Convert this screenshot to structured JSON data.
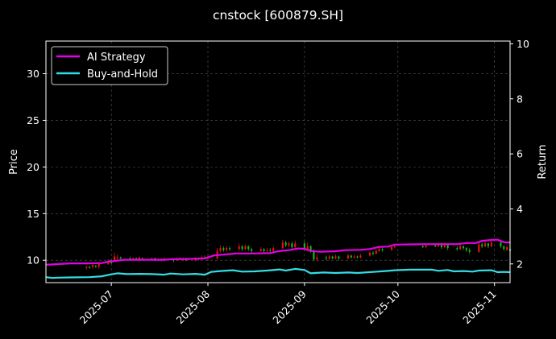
{
  "chart_data": {
    "type": "line",
    "title": "cnstock [600879.SH]",
    "xlabel": "",
    "ylabel_left": "Price",
    "ylabel_right": "Return",
    "x_range": [
      "2025-06-10",
      "2025-11-06"
    ],
    "ylim_left": [
      7.6,
      33.5
    ],
    "ylim_right": [
      1.32,
      10.1
    ],
    "left_ticks": [
      10,
      15,
      20,
      25,
      30
    ],
    "right_ticks": [
      2,
      4,
      6,
      8,
      10
    ],
    "x_ticks": [
      "2025-07",
      "2025-08",
      "2025-09",
      "2025-10",
      "2025-11"
    ],
    "x_tick_dates": [
      "2025-07-01",
      "2025-08-01",
      "2025-09-01",
      "2025-10-01",
      "2025-11-01"
    ],
    "grid": true,
    "legend_position": "top-left",
    "colors": {
      "background": "#000000",
      "ai_strategy": "#e600e6",
      "buy_hold": "#33dde6",
      "up_candle": "#ee1111",
      "down_candle": "#11bb11",
      "grid": "#555555"
    },
    "series": [
      {
        "name": "AI Strategy",
        "axis": "right",
        "points": [
          [
            "2025-06-10",
            1.97
          ],
          [
            "2025-06-13",
            1.99
          ],
          [
            "2025-06-18",
            2.02
          ],
          [
            "2025-06-24",
            2.02
          ],
          [
            "2025-06-28",
            2.03
          ],
          [
            "2025-06-30",
            2.08
          ],
          [
            "2025-07-03",
            2.12
          ],
          [
            "2025-07-05",
            2.15
          ],
          [
            "2025-07-12",
            2.15
          ],
          [
            "2025-07-18",
            2.15
          ],
          [
            "2025-07-20",
            2.17
          ],
          [
            "2025-07-25",
            2.18
          ],
          [
            "2025-07-31",
            2.2
          ],
          [
            "2025-08-03",
            2.31
          ],
          [
            "2025-08-08",
            2.36
          ],
          [
            "2025-08-10",
            2.38
          ],
          [
            "2025-08-15",
            2.38
          ],
          [
            "2025-08-21",
            2.39
          ],
          [
            "2025-08-23",
            2.45
          ],
          [
            "2025-08-25",
            2.48
          ],
          [
            "2025-08-27",
            2.5
          ],
          [
            "2025-08-30",
            2.56
          ],
          [
            "2025-09-01",
            2.55
          ],
          [
            "2025-09-03",
            2.47
          ],
          [
            "2025-09-06",
            2.44
          ],
          [
            "2025-09-11",
            2.46
          ],
          [
            "2025-09-14",
            2.5
          ],
          [
            "2025-09-19",
            2.51
          ],
          [
            "2025-09-22",
            2.54
          ],
          [
            "2025-09-25",
            2.62
          ],
          [
            "2025-09-28",
            2.63
          ],
          [
            "2025-09-30",
            2.7
          ],
          [
            "2025-10-05",
            2.71
          ],
          [
            "2025-10-10",
            2.72
          ],
          [
            "2025-10-17",
            2.72
          ],
          [
            "2025-10-20",
            2.72
          ],
          [
            "2025-10-23",
            2.76
          ],
          [
            "2025-10-26",
            2.76
          ],
          [
            "2025-10-28",
            2.84
          ],
          [
            "2025-10-31",
            2.87
          ],
          [
            "2025-11-02",
            2.88
          ],
          [
            "2025-11-04",
            2.79
          ],
          [
            "2025-11-06",
            2.78
          ]
        ]
      },
      {
        "name": "Buy-and-Hold",
        "axis": "right",
        "points": [
          [
            "2025-06-10",
            1.52
          ],
          [
            "2025-06-12",
            1.49
          ],
          [
            "2025-06-14",
            1.5
          ],
          [
            "2025-06-18",
            1.51
          ],
          [
            "2025-06-24",
            1.52
          ],
          [
            "2025-06-28",
            1.55
          ],
          [
            "2025-07-01",
            1.62
          ],
          [
            "2025-07-03",
            1.66
          ],
          [
            "2025-07-06",
            1.63
          ],
          [
            "2025-07-10",
            1.64
          ],
          [
            "2025-07-14",
            1.63
          ],
          [
            "2025-07-18",
            1.61
          ],
          [
            "2025-07-20",
            1.65
          ],
          [
            "2025-07-24",
            1.62
          ],
          [
            "2025-07-28",
            1.64
          ],
          [
            "2025-07-31",
            1.61
          ],
          [
            "2025-08-02",
            1.71
          ],
          [
            "2025-08-05",
            1.74
          ],
          [
            "2025-08-09",
            1.77
          ],
          [
            "2025-08-12",
            1.72
          ],
          [
            "2025-08-16",
            1.73
          ],
          [
            "2025-08-20",
            1.76
          ],
          [
            "2025-08-24",
            1.8
          ],
          [
            "2025-08-26",
            1.76
          ],
          [
            "2025-08-29",
            1.82
          ],
          [
            "2025-09-01",
            1.78
          ],
          [
            "2025-09-03",
            1.66
          ],
          [
            "2025-09-07",
            1.69
          ],
          [
            "2025-09-11",
            1.67
          ],
          [
            "2025-09-15",
            1.69
          ],
          [
            "2025-09-18",
            1.67
          ],
          [
            "2025-09-23",
            1.71
          ],
          [
            "2025-09-27",
            1.74
          ],
          [
            "2025-09-30",
            1.77
          ],
          [
            "2025-10-05",
            1.79
          ],
          [
            "2025-10-12",
            1.79
          ],
          [
            "2025-10-14",
            1.75
          ],
          [
            "2025-10-17",
            1.78
          ],
          [
            "2025-10-19",
            1.73
          ],
          [
            "2025-10-22",
            1.74
          ],
          [
            "2025-10-25",
            1.72
          ],
          [
            "2025-10-27",
            1.76
          ],
          [
            "2025-10-31",
            1.77
          ],
          [
            "2025-11-02",
            1.7
          ],
          [
            "2025-11-04",
            1.71
          ],
          [
            "2025-11-06",
            1.7
          ]
        ]
      }
    ],
    "candles": {
      "axis": "left",
      "columns": [
        "date",
        "open",
        "close",
        "low",
        "high"
      ],
      "data": [
        [
          "2025-06-23",
          9.2,
          9.3,
          9.0,
          9.4
        ],
        [
          "2025-06-24",
          9.3,
          9.2,
          9.1,
          9.4
        ],
        [
          "2025-06-25",
          9.3,
          9.5,
          9.1,
          9.6
        ],
        [
          "2025-06-26",
          9.4,
          9.3,
          9.2,
          9.5
        ],
        [
          "2025-06-27",
          9.3,
          9.6,
          9.1,
          9.8
        ],
        [
          "2025-06-30",
          9.6,
          9.9,
          9.5,
          10.1
        ],
        [
          "2025-07-01",
          9.9,
          9.7,
          9.6,
          10.1
        ],
        [
          "2025-07-02",
          9.9,
          10.4,
          9.8,
          10.8
        ],
        [
          "2025-07-03",
          10.2,
          10.3,
          10.0,
          10.6
        ],
        [
          "2025-07-04",
          10.3,
          10.2,
          10.1,
          10.4
        ],
        [
          "2025-07-07",
          10.2,
          10.1,
          10.0,
          10.4
        ],
        [
          "2025-07-08",
          10.1,
          10.2,
          10.0,
          10.3
        ],
        [
          "2025-07-09",
          10.2,
          10.1,
          10.0,
          10.3
        ],
        [
          "2025-07-10",
          10.0,
          10.3,
          9.9,
          10.4
        ],
        [
          "2025-07-11",
          10.2,
          10.1,
          10.0,
          10.3
        ],
        [
          "2025-07-14",
          10.1,
          10.2,
          10.0,
          10.3
        ],
        [
          "2025-07-15",
          10.2,
          10.0,
          9.9,
          10.3
        ],
        [
          "2025-07-16",
          10.0,
          10.1,
          9.9,
          10.2
        ],
        [
          "2025-07-17",
          10.1,
          10.0,
          9.9,
          10.2
        ],
        [
          "2025-07-18",
          10.0,
          10.2,
          9.9,
          10.3
        ],
        [
          "2025-07-21",
          10.1,
          10.0,
          9.8,
          10.2
        ],
        [
          "2025-07-22",
          10.0,
          10.2,
          9.9,
          10.3
        ],
        [
          "2025-07-23",
          10.2,
          10.1,
          10.0,
          10.3
        ],
        [
          "2025-07-24",
          10.0,
          10.2,
          9.9,
          10.3
        ],
        [
          "2025-07-25",
          10.1,
          10.0,
          9.9,
          10.2
        ],
        [
          "2025-07-28",
          10.0,
          10.2,
          9.9,
          10.3
        ],
        [
          "2025-07-29",
          10.2,
          10.1,
          10.0,
          10.3
        ],
        [
          "2025-07-30",
          10.1,
          10.3,
          10.0,
          10.5
        ],
        [
          "2025-07-31",
          10.3,
          10.2,
          10.1,
          10.5
        ],
        [
          "2025-08-01",
          10.2,
          10.4,
          10.0,
          10.6
        ],
        [
          "2025-08-04",
          10.2,
          11.0,
          10.1,
          11.3
        ],
        [
          "2025-08-05",
          11.0,
          11.3,
          10.8,
          11.6
        ],
        [
          "2025-08-06",
          11.3,
          11.1,
          10.9,
          11.5
        ],
        [
          "2025-08-07",
          11.1,
          11.3,
          10.9,
          11.5
        ],
        [
          "2025-08-08",
          11.3,
          11.2,
          11.0,
          11.5
        ],
        [
          "2025-08-11",
          11.2,
          11.5,
          11.0,
          11.8
        ],
        [
          "2025-08-12",
          11.5,
          11.2,
          11.0,
          11.6
        ],
        [
          "2025-08-13",
          11.2,
          11.5,
          11.1,
          11.7
        ],
        [
          "2025-08-14",
          11.5,
          11.2,
          11.0,
          11.6
        ],
        [
          "2025-08-15",
          11.2,
          11.0,
          10.8,
          11.3
        ],
        [
          "2025-08-18",
          11.0,
          11.2,
          10.9,
          11.4
        ],
        [
          "2025-08-19",
          11.2,
          11.0,
          10.8,
          11.3
        ],
        [
          "2025-08-20",
          11.0,
          11.1,
          10.9,
          11.3
        ],
        [
          "2025-08-21",
          11.1,
          11.0,
          10.9,
          11.3
        ],
        [
          "2025-08-22",
          11.0,
          11.3,
          10.9,
          11.5
        ],
        [
          "2025-08-25",
          11.3,
          11.9,
          11.2,
          12.2
        ],
        [
          "2025-08-26",
          11.9,
          11.6,
          11.4,
          12.1
        ],
        [
          "2025-08-27",
          11.6,
          11.8,
          11.4,
          12.0
        ],
        [
          "2025-08-28",
          11.8,
          11.4,
          11.2,
          12.0
        ],
        [
          "2025-08-29",
          11.4,
          11.8,
          11.2,
          12.1
        ],
        [
          "2025-09-01",
          11.8,
          11.2,
          11.0,
          12.1
        ],
        [
          "2025-09-02",
          11.2,
          11.5,
          11.0,
          11.9
        ],
        [
          "2025-09-03",
          11.5,
          11.0,
          10.8,
          11.6
        ],
        [
          "2025-09-04",
          11.0,
          10.1,
          9.9,
          11.2
        ],
        [
          "2025-09-05",
          10.1,
          10.3,
          9.9,
          10.6
        ],
        [
          "2025-09-08",
          10.3,
          10.2,
          10.0,
          10.5
        ],
        [
          "2025-09-09",
          10.2,
          10.4,
          10.0,
          10.6
        ],
        [
          "2025-09-10",
          10.4,
          10.2,
          10.1,
          10.5
        ],
        [
          "2025-09-11",
          10.2,
          10.4,
          10.1,
          10.6
        ],
        [
          "2025-09-12",
          10.4,
          10.2,
          10.0,
          10.5
        ],
        [
          "2025-09-15",
          10.2,
          10.5,
          10.1,
          10.7
        ],
        [
          "2025-09-16",
          10.5,
          10.3,
          10.2,
          10.6
        ],
        [
          "2025-09-17",
          10.3,
          10.4,
          10.2,
          10.6
        ],
        [
          "2025-09-18",
          10.4,
          10.3,
          10.2,
          10.5
        ],
        [
          "2025-09-19",
          10.3,
          10.5,
          10.2,
          10.7
        ],
        [
          "2025-09-22",
          10.5,
          10.8,
          10.4,
          11.0
        ],
        [
          "2025-09-23",
          10.8,
          10.7,
          10.5,
          11.0
        ],
        [
          "2025-09-24",
          10.7,
          11.0,
          10.6,
          11.2
        ],
        [
          "2025-09-25",
          11.0,
          11.2,
          10.9,
          11.4
        ],
        [
          "2025-09-26",
          11.2,
          11.1,
          10.9,
          11.4
        ],
        [
          "2025-09-29",
          11.1,
          11.4,
          11.0,
          11.6
        ],
        [
          "2025-09-30",
          11.4,
          11.5,
          11.3,
          11.7
        ],
        [
          "2025-10-09",
          11.5,
          11.4,
          11.3,
          11.7
        ],
        [
          "2025-10-10",
          11.4,
          11.6,
          11.3,
          11.8
        ],
        [
          "2025-10-13",
          11.6,
          11.5,
          11.4,
          11.8
        ],
        [
          "2025-10-14",
          11.5,
          11.7,
          11.4,
          11.9
        ],
        [
          "2025-10-15",
          11.7,
          11.4,
          11.2,
          11.9
        ],
        [
          "2025-10-16",
          11.4,
          11.7,
          11.3,
          11.9
        ],
        [
          "2025-10-17",
          11.7,
          11.3,
          11.1,
          11.8
        ],
        [
          "2025-10-20",
          11.3,
          11.2,
          11.0,
          11.5
        ],
        [
          "2025-10-21",
          11.2,
          11.5,
          11.1,
          11.7
        ],
        [
          "2025-10-22",
          11.5,
          11.3,
          11.1,
          11.6
        ],
        [
          "2025-10-23",
          11.3,
          11.1,
          10.9,
          11.4
        ],
        [
          "2025-10-24",
          11.1,
          10.9,
          10.7,
          11.3
        ],
        [
          "2025-10-27",
          10.9,
          11.7,
          10.8,
          12.1
        ],
        [
          "2025-10-28",
          11.7,
          11.5,
          11.3,
          11.9
        ],
        [
          "2025-10-29",
          11.5,
          11.8,
          11.4,
          12.0
        ],
        [
          "2025-10-30",
          11.8,
          11.5,
          11.3,
          11.9
        ],
        [
          "2025-10-31",
          11.5,
          11.9,
          11.4,
          12.1
        ],
        [
          "2025-11-03",
          11.9,
          11.5,
          11.3,
          12.0
        ],
        [
          "2025-11-04",
          11.5,
          11.2,
          11.0,
          11.6
        ],
        [
          "2025-11-05",
          11.1,
          11.4,
          11.0,
          11.6
        ],
        [
          "2025-11-06",
          11.2,
          11.0,
          10.9,
          11.3
        ]
      ]
    }
  }
}
